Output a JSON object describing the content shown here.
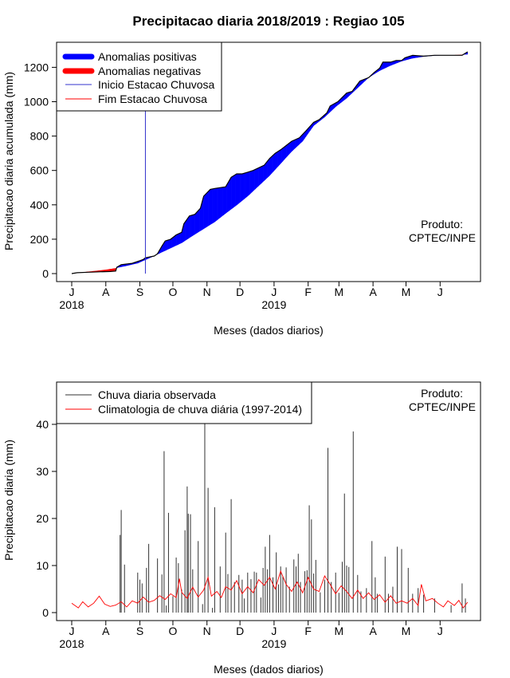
{
  "title": "Precipitacao diaria 2018/2019 : Regiao 105",
  "produto_label": "Produto:",
  "produto_value": "CPTEC/INPE",
  "chart_data": [
    {
      "type": "area",
      "name": "accumulated",
      "ylabel": "Precipitacao diaria acumulada (mm)",
      "xlabel": "Meses (dados diarios)",
      "ylim": [
        0,
        1300
      ],
      "yticks": [
        0,
        200,
        400,
        600,
        800,
        1000,
        1200
      ],
      "month_labels": [
        "J",
        "A",
        "S",
        "O",
        "N",
        "D",
        "J",
        "F",
        "M",
        "A",
        "M",
        "J"
      ],
      "year_labels": [
        "2018",
        "2019"
      ],
      "x_unit": "day index from 2018-07-01",
      "legend": [
        "Anomalias positivas",
        "Anomalias negativas",
        "Inicio Estacao Chuvosa",
        "Fim Estacao Chuvosa"
      ],
      "colors": {
        "positive": "#0000ff",
        "negative": "#ff0000",
        "onset": "#3333cc",
        "end": "#ff0000"
      },
      "rainy_season_onset_day": 67,
      "observed": [
        [
          0,
          0
        ],
        [
          5,
          5
        ],
        [
          15,
          8
        ],
        [
          25,
          10
        ],
        [
          35,
          12
        ],
        [
          40,
          15
        ],
        [
          41,
          37
        ],
        [
          45,
          52
        ],
        [
          55,
          60
        ],
        [
          62,
          75
        ],
        [
          65,
          82
        ],
        [
          67,
          92
        ],
        [
          75,
          102
        ],
        [
          78,
          115
        ],
        [
          82,
          160
        ],
        [
          85,
          190
        ],
        [
          90,
          200
        ],
        [
          95,
          225
        ],
        [
          100,
          240
        ],
        [
          102,
          290
        ],
        [
          107,
          335
        ],
        [
          112,
          345
        ],
        [
          117,
          380
        ],
        [
          120,
          450
        ],
        [
          126,
          490
        ],
        [
          130,
          495
        ],
        [
          140,
          505
        ],
        [
          145,
          560
        ],
        [
          150,
          580
        ],
        [
          155,
          580
        ],
        [
          160,
          590
        ],
        [
          165,
          600
        ],
        [
          175,
          630
        ],
        [
          180,
          670
        ],
        [
          185,
          700
        ],
        [
          190,
          720
        ],
        [
          195,
          745
        ],
        [
          200,
          770
        ],
        [
          207,
          790
        ],
        [
          213,
          830
        ],
        [
          220,
          880
        ],
        [
          225,
          895
        ],
        [
          232,
          935
        ],
        [
          235,
          975
        ],
        [
          242,
          1000
        ],
        [
          250,
          1050
        ],
        [
          255,
          1060
        ],
        [
          262,
          1120
        ],
        [
          270,
          1140
        ],
        [
          275,
          1170
        ],
        [
          280,
          1195
        ],
        [
          283,
          1230
        ],
        [
          290,
          1230
        ],
        [
          295,
          1240
        ],
        [
          300,
          1240
        ],
        [
          303,
          1255
        ],
        [
          310,
          1270
        ],
        [
          320,
          1265
        ],
        [
          330,
          1270
        ],
        [
          345,
          1270
        ],
        [
          355,
          1270
        ],
        [
          360,
          1290
        ]
      ],
      "climatology": [
        [
          0,
          0
        ],
        [
          10,
          8
        ],
        [
          20,
          15
        ],
        [
          30,
          22
        ],
        [
          40,
          32
        ],
        [
          50,
          45
        ],
        [
          60,
          60
        ],
        [
          70,
          88
        ],
        [
          80,
          118
        ],
        [
          90,
          148
        ],
        [
          100,
          178
        ],
        [
          110,
          220
        ],
        [
          120,
          260
        ],
        [
          130,
          300
        ],
        [
          140,
          350
        ],
        [
          150,
          398
        ],
        [
          160,
          450
        ],
        [
          170,
          510
        ],
        [
          180,
          570
        ],
        [
          190,
          640
        ],
        [
          200,
          710
        ],
        [
          210,
          770
        ],
        [
          220,
          860
        ],
        [
          230,
          910
        ],
        [
          240,
          970
        ],
        [
          250,
          1020
        ],
        [
          260,
          1080
        ],
        [
          270,
          1140
        ],
        [
          280,
          1180
        ],
        [
          290,
          1210
        ],
        [
          300,
          1235
        ],
        [
          310,
          1252
        ],
        [
          320,
          1262
        ],
        [
          330,
          1268
        ],
        [
          340,
          1270
        ],
        [
          350,
          1272
        ],
        [
          360,
          1275
        ]
      ]
    },
    {
      "type": "bar",
      "name": "daily",
      "ylabel": "Precipitacao diaria (mm)",
      "xlabel": "Meses (dados diarios)",
      "ylim": [
        0,
        45
      ],
      "yticks": [
        0,
        10,
        20,
        30,
        40
      ],
      "month_labels": [
        "J",
        "A",
        "S",
        "O",
        "N",
        "D",
        "J",
        "F",
        "M",
        "A",
        "M",
        "J"
      ],
      "year_labels": [
        "2018",
        "2019"
      ],
      "legend": [
        "Chuva diaria observada",
        "Climatologia de chuva diária (1997-2014)"
      ],
      "colors": {
        "observed": "#333333",
        "climatology": "#ff0000"
      },
      "observed_spikes": [
        [
          44,
          16.5
        ],
        [
          45,
          21.8
        ],
        [
          48,
          10.2
        ],
        [
          60,
          8.5
        ],
        [
          62,
          7.0
        ],
        [
          64,
          6.2
        ],
        [
          68,
          9.5
        ],
        [
          70,
          14.6
        ],
        [
          78,
          11.5
        ],
        [
          82,
          8.1
        ],
        [
          84,
          34.3
        ],
        [
          86,
          1.5
        ],
        [
          88,
          21.2
        ],
        [
          92,
          3.5
        ],
        [
          95,
          11.7
        ],
        [
          97,
          10.5
        ],
        [
          100,
          4.9
        ],
        [
          103,
          17.5
        ],
        [
          105,
          26.8
        ],
        [
          106,
          21.0
        ],
        [
          108,
          20.9
        ],
        [
          110,
          9.2
        ],
        [
          115,
          15.2
        ],
        [
          119,
          1.8
        ],
        [
          121,
          45.0
        ],
        [
          124,
          26.5
        ],
        [
          128,
          1.0
        ],
        [
          130,
          22.4
        ],
        [
          135,
          9.8
        ],
        [
          140,
          17.0
        ],
        [
          142,
          8.2
        ],
        [
          145,
          24.1
        ],
        [
          148,
          6.5
        ],
        [
          152,
          8.0
        ],
        [
          155,
          7.0
        ],
        [
          157,
          3.0
        ],
        [
          160,
          8.5
        ],
        [
          163,
          7.1
        ],
        [
          166,
          8.7
        ],
        [
          168,
          8.5
        ],
        [
          172,
          3.2
        ],
        [
          174,
          9.5
        ],
        [
          176,
          14.0
        ],
        [
          178,
          9.2
        ],
        [
          180,
          16.5
        ],
        [
          183,
          7.5
        ],
        [
          186,
          12.8
        ],
        [
          188,
          6.0
        ],
        [
          190,
          9.8
        ],
        [
          192,
          7.7
        ],
        [
          195,
          9.6
        ],
        [
          198,
          5.5
        ],
        [
          202,
          11.3
        ],
        [
          204,
          9.8
        ],
        [
          206,
          12.5
        ],
        [
          208,
          6.5
        ],
        [
          212,
          8.8
        ],
        [
          214,
          9.0
        ],
        [
          216,
          22.8
        ],
        [
          218,
          19.8
        ],
        [
          220,
          8.3
        ],
        [
          222,
          11.2
        ],
        [
          226,
          4.3
        ],
        [
          230,
          7.0
        ],
        [
          233,
          35.0
        ],
        [
          236,
          6.5
        ],
        [
          240,
          8.5
        ],
        [
          243,
          4.2
        ],
        [
          246,
          10.8
        ],
        [
          248,
          25.3
        ],
        [
          250,
          10.0
        ],
        [
          252,
          9.7
        ],
        [
          256,
          38.5
        ],
        [
          260,
          8.0
        ],
        [
          263,
          4.5
        ],
        [
          268,
          5.2
        ],
        [
          273,
          15.2
        ],
        [
          276,
          7.5
        ],
        [
          278,
          4.0
        ],
        [
          285,
          11.9
        ],
        [
          288,
          4.0
        ],
        [
          292,
          5.5
        ],
        [
          296,
          14.0
        ],
        [
          300,
          13.5
        ],
        [
          306,
          9.5
        ],
        [
          310,
          4.0
        ],
        [
          315,
          5.2
        ],
        [
          320,
          3.8
        ],
        [
          330,
          3.0
        ],
        [
          345,
          1.6
        ],
        [
          355,
          6.2
        ],
        [
          358,
          3.0
        ]
      ],
      "climatology_line": [
        [
          0,
          2.0
        ],
        [
          6,
          1.0
        ],
        [
          10,
          2.3
        ],
        [
          15,
          1.2
        ],
        [
          20,
          2.0
        ],
        [
          25,
          3.5
        ],
        [
          30,
          1.8
        ],
        [
          35,
          1.3
        ],
        [
          40,
          1.6
        ],
        [
          45,
          2.3
        ],
        [
          50,
          1.2
        ],
        [
          55,
          2.5
        ],
        [
          60,
          2.0
        ],
        [
          65,
          3.3
        ],
        [
          70,
          2.2
        ],
        [
          75,
          2.6
        ],
        [
          80,
          3.6
        ],
        [
          85,
          2.8
        ],
        [
          90,
          4.0
        ],
        [
          95,
          3.2
        ],
        [
          98,
          7.2
        ],
        [
          100,
          4.3
        ],
        [
          105,
          3.0
        ],
        [
          110,
          5.4
        ],
        [
          115,
          3.3
        ],
        [
          120,
          4.8
        ],
        [
          124,
          7.5
        ],
        [
          127,
          3.5
        ],
        [
          132,
          4.5
        ],
        [
          136,
          3.2
        ],
        [
          140,
          5.5
        ],
        [
          145,
          4.8
        ],
        [
          150,
          6.8
        ],
        [
          155,
          4.0
        ],
        [
          160,
          5.5
        ],
        [
          165,
          4.2
        ],
        [
          170,
          7.0
        ],
        [
          175,
          5.8
        ],
        [
          180,
          7.5
        ],
        [
          185,
          5.0
        ],
        [
          190,
          8.8
        ],
        [
          195,
          6.0
        ],
        [
          200,
          4.5
        ],
        [
          205,
          6.5
        ],
        [
          210,
          4.2
        ],
        [
          215,
          7.5
        ],
        [
          220,
          5.0
        ],
        [
          225,
          4.5
        ],
        [
          230,
          7.8
        ],
        [
          235,
          6.0
        ],
        [
          240,
          4.0
        ],
        [
          245,
          5.7
        ],
        [
          250,
          4.5
        ],
        [
          255,
          3.0
        ],
        [
          260,
          4.8
        ],
        [
          265,
          3.0
        ],
        [
          270,
          4.2
        ],
        [
          275,
          2.8
        ],
        [
          280,
          3.8
        ],
        [
          285,
          2.2
        ],
        [
          290,
          3.6
        ],
        [
          295,
          2.0
        ],
        [
          300,
          2.5
        ],
        [
          305,
          2.0
        ],
        [
          310,
          3.0
        ],
        [
          315,
          1.5
        ],
        [
          318,
          6.0
        ],
        [
          322,
          2.5
        ],
        [
          328,
          3.0
        ],
        [
          333,
          2.0
        ],
        [
          338,
          1.2
        ],
        [
          342,
          2.5
        ],
        [
          348,
          1.5
        ],
        [
          352,
          2.6
        ],
        [
          356,
          1.0
        ],
        [
          360,
          2.2
        ]
      ]
    }
  ]
}
